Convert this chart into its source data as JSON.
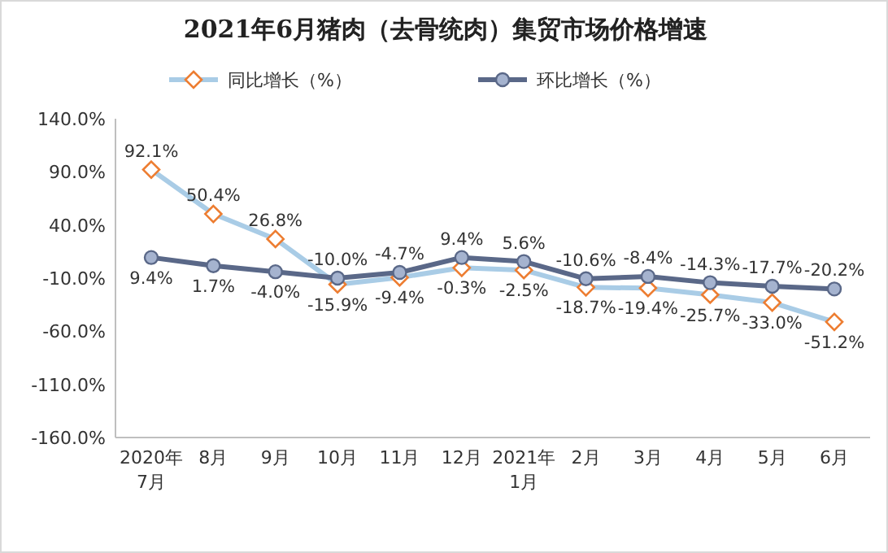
{
  "chart_data": {
    "type": "line",
    "title": "2021年6月猪肉（去骨统肉）集贸市场价格增速",
    "categories": [
      "2020年\n7月",
      "8月",
      "9月",
      "10月",
      "11月",
      "12月",
      "2021年\n1月",
      "2月",
      "3月",
      "4月",
      "5月",
      "6月"
    ],
    "series": [
      {
        "name": "同比增长（%）",
        "color": "#a9cce6",
        "marker": "diamond",
        "values": [
          92.1,
          50.4,
          26.8,
          -15.9,
          -9.4,
          -0.3,
          -2.5,
          -18.7,
          -19.4,
          -25.7,
          -33.0,
          -51.2
        ],
        "value_labels": [
          "92.1%",
          "50.4%",
          "26.8%",
          "-15.9%",
          "-9.4%",
          "-0.3%",
          "-2.5%",
          "-18.7%",
          "-19.4%",
          "-25.7%",
          "-33.0%",
          "-51.2%"
        ]
      },
      {
        "name": "环比增长（%）",
        "color": "#5a6888",
        "marker": "circle",
        "values": [
          9.4,
          1.7,
          -4.0,
          -10.0,
          -4.7,
          9.4,
          5.6,
          -10.6,
          -8.4,
          -14.3,
          -17.7,
          -20.2
        ],
        "value_labels": [
          "9.4%",
          "1.7%",
          "-4.0%",
          "-10.0%",
          "-4.7%",
          "9.4%",
          "5.6%",
          "-10.6%",
          "-8.4%",
          "-14.3%",
          "-17.7%",
          "-20.2%"
        ]
      }
    ],
    "ylim": [
      -160,
      140
    ],
    "yticks": [
      {
        "value": 140,
        "label": "140.0%"
      },
      {
        "value": 90,
        "label": "90.0%"
      },
      {
        "value": 40,
        "label": "40.0%"
      },
      {
        "value": -10,
        "label": "-10.0%"
      },
      {
        "value": -60,
        "label": "-60.0%"
      },
      {
        "value": -110,
        "label": "-110.0%"
      },
      {
        "value": -160,
        "label": "-160.0%"
      }
    ],
    "legend": "top",
    "grid": false
  }
}
